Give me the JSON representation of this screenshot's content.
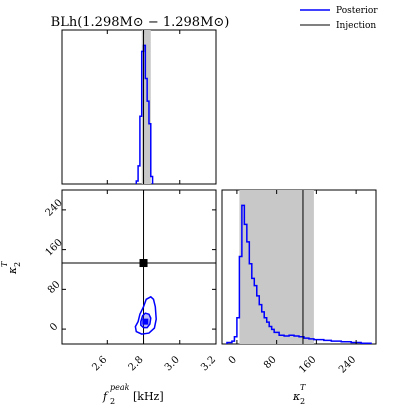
{
  "colors": {
    "posterior": "#0000ff",
    "injection": "#000000",
    "credible_band": "#c8c8c8",
    "median_marker": "#000000"
  },
  "chart_data": {
    "type": "corner",
    "title": "BLh(1.298M⊙ − 1.298M⊙)",
    "legend": {
      "placement": "top-right",
      "entries": [
        {
          "label": "Posterior",
          "color": "#0000ff"
        },
        {
          "label": "Injection",
          "color": "#000000"
        }
      ]
    },
    "params": {
      "fpeak": {
        "label_main": "f",
        "label_sub": "2",
        "label_sup": "peak",
        "label_unit": "[kHz]",
        "lim": [
          2.35,
          3.2
        ],
        "ticks": [
          2.6,
          2.8,
          3.0,
          3.2
        ],
        "tick_labels": [
          "2.6",
          "2.8",
          "3.0",
          "3.2"
        ],
        "injection": 2.8
      },
      "kappa": {
        "label_main": "κ",
        "label_sub": "2",
        "label_sup": "T",
        "lim": [
          -30,
          280
        ],
        "ticks": [
          0,
          80,
          160,
          240
        ],
        "tick_labels": [
          "0",
          "80",
          "160",
          "240"
        ],
        "injection": 133
      }
    },
    "panels": {
      "fpeak_hist": {
        "edges": [
          2.76,
          2.77,
          2.78,
          2.79,
          2.8,
          2.81,
          2.82,
          2.83,
          2.84,
          2.85
        ],
        "values": [
          0.02,
          0.12,
          0.45,
          0.88,
          0.92,
          0.7,
          0.55,
          0.4,
          0.05
        ],
        "band": [
          2.79,
          2.84
        ]
      },
      "kappa_hist": {
        "edges": [
          -20,
          -10,
          -5,
          0,
          5,
          10,
          15,
          20,
          25,
          30,
          35,
          40,
          45,
          50,
          55,
          60,
          65,
          70,
          75,
          85,
          95,
          105,
          115,
          125,
          135,
          145,
          155,
          165,
          175,
          190,
          210,
          230,
          250,
          270
        ],
        "values": [
          0.01,
          0.02,
          0.05,
          0.18,
          0.6,
          0.95,
          0.82,
          0.7,
          0.55,
          0.45,
          0.4,
          0.33,
          0.27,
          0.22,
          0.18,
          0.15,
          0.12,
          0.1,
          0.08,
          0.06,
          0.055,
          0.06,
          0.055,
          0.05,
          0.04,
          0.035,
          0.03,
          0.03,
          0.025,
          0.02,
          0.015,
          0.01,
          0.005
        ],
        "band": [
          5,
          155
        ]
      },
      "joint": {
        "contours": [
          {
            "level": "outer",
            "points": [
              [
                2.77,
                15
              ],
              [
                2.755,
                5
              ],
              [
                2.76,
                -5
              ],
              [
                2.79,
                -10
              ],
              [
                2.83,
                -8
              ],
              [
                2.86,
                2
              ],
              [
                2.87,
                20
              ],
              [
                2.865,
                45
              ],
              [
                2.855,
                60
              ],
              [
                2.84,
                65
              ],
              [
                2.815,
                60
              ],
              [
                2.8,
                45
              ],
              [
                2.78,
                30
              ]
            ]
          },
          {
            "level": "inner",
            "points": [
              [
                2.785,
                15
              ],
              [
                2.785,
                8
              ],
              [
                2.8,
                3
              ],
              [
                2.82,
                3
              ],
              [
                2.835,
                10
              ],
              [
                2.84,
                22
              ],
              [
                2.83,
                30
              ],
              [
                2.81,
                32
              ],
              [
                2.795,
                27
              ]
            ]
          }
        ],
        "peak": {
          "x": 2.81,
          "y": 15
        }
      }
    }
  }
}
